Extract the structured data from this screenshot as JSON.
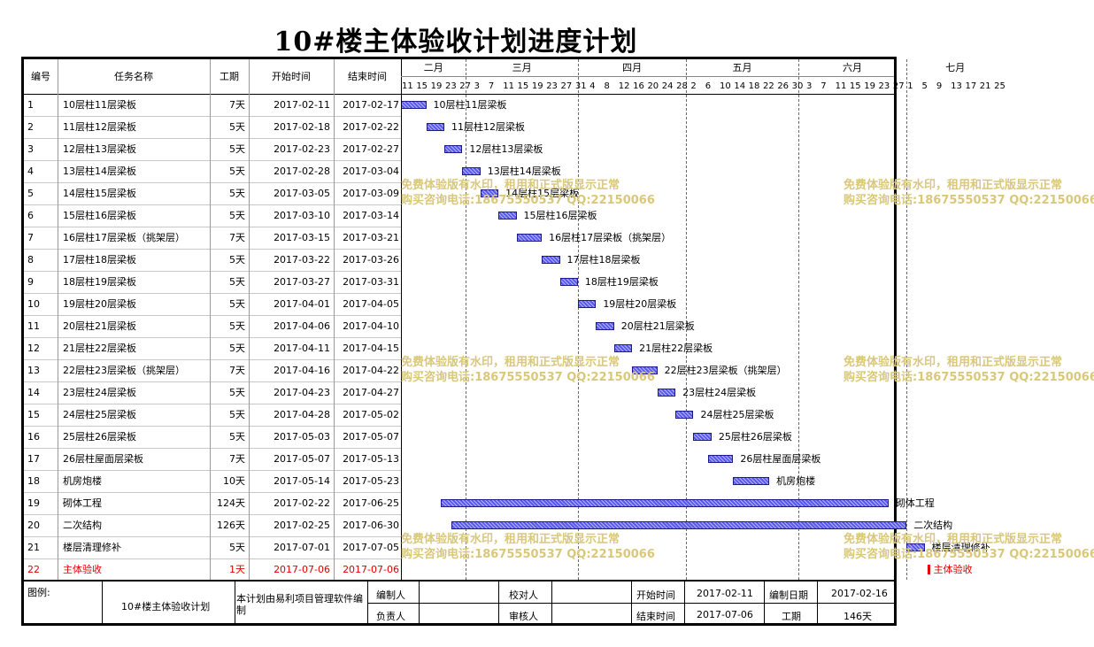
{
  "title": "10#楼主体验收计划进度计划",
  "columns": {
    "id": "编号",
    "name": "任务名称",
    "duration": "工期",
    "start": "开始时间",
    "end": "结束时间"
  },
  "months": [
    {
      "label": "二月"
    },
    {
      "label": "三月"
    },
    {
      "label": "四月"
    },
    {
      "label": "五月"
    },
    {
      "label": "六月"
    },
    {
      "label": "七月"
    }
  ],
  "days": [
    "11",
    "15",
    "19",
    "23",
    "27",
    "3",
    "7",
    "11",
    "15",
    "19",
    "23",
    "27",
    "31",
    "4",
    "8",
    "12",
    "16",
    "20",
    "24",
    "28",
    "2",
    "6",
    "10",
    "14",
    "18",
    "22",
    "26",
    "30",
    "3",
    "7",
    "11",
    "15",
    "19",
    "23",
    "27",
    "1",
    "5",
    "9",
    "13",
    "17",
    "21",
    "25"
  ],
  "tasks": [
    {
      "id": "1",
      "name": "10层柱11层梁板",
      "duration": "7天",
      "start": "2017-02-11",
      "end": "2017-02-17",
      "bar_label": "10层柱11层梁板"
    },
    {
      "id": "2",
      "name": "11层柱12层梁板",
      "duration": "5天",
      "start": "2017-02-18",
      "end": "2017-02-22",
      "bar_label": "11层柱12层梁板"
    },
    {
      "id": "3",
      "name": "12层柱13层梁板",
      "duration": "5天",
      "start": "2017-02-23",
      "end": "2017-02-27",
      "bar_label": "12层柱13层梁板"
    },
    {
      "id": "4",
      "name": "13层柱14层梁板",
      "duration": "5天",
      "start": "2017-02-28",
      "end": "2017-03-04",
      "bar_label": "13层柱14层梁板"
    },
    {
      "id": "5",
      "name": "14层柱15层梁板",
      "duration": "5天",
      "start": "2017-03-05",
      "end": "2017-03-09",
      "bar_label": "14层柱15层梁板"
    },
    {
      "id": "6",
      "name": "15层柱16层梁板",
      "duration": "5天",
      "start": "2017-03-10",
      "end": "2017-03-14",
      "bar_label": "15层柱16层梁板"
    },
    {
      "id": "7",
      "name": "16层柱17层梁板（挑架层）",
      "duration": "7天",
      "start": "2017-03-15",
      "end": "2017-03-21",
      "bar_label": "16层柱17层梁板（挑架层）"
    },
    {
      "id": "8",
      "name": "17层柱18层梁板",
      "duration": "5天",
      "start": "2017-03-22",
      "end": "2017-03-26",
      "bar_label": "17层柱18层梁板"
    },
    {
      "id": "9",
      "name": "18层柱19层梁板",
      "duration": "5天",
      "start": "2017-03-27",
      "end": "2017-03-31",
      "bar_label": "18层柱19层梁板"
    },
    {
      "id": "10",
      "name": "19层柱20层梁板",
      "duration": "5天",
      "start": "2017-04-01",
      "end": "2017-04-05",
      "bar_label": "19层柱20层梁板"
    },
    {
      "id": "11",
      "name": "20层柱21层梁板",
      "duration": "5天",
      "start": "2017-04-06",
      "end": "2017-04-10",
      "bar_label": "20层柱21层梁板"
    },
    {
      "id": "12",
      "name": "21层柱22层梁板",
      "duration": "5天",
      "start": "2017-04-11",
      "end": "2017-04-15",
      "bar_label": "21层柱22层梁板"
    },
    {
      "id": "13",
      "name": "22层柱23层梁板（挑架层）",
      "duration": "7天",
      "start": "2017-04-16",
      "end": "2017-04-22",
      "bar_label": "22层柱23层梁板（挑架层）"
    },
    {
      "id": "14",
      "name": "23层柱24层梁板",
      "duration": "5天",
      "start": "2017-04-23",
      "end": "2017-04-27",
      "bar_label": "23层柱24层梁板"
    },
    {
      "id": "15",
      "name": "24层柱25层梁板",
      "duration": "5天",
      "start": "2017-04-28",
      "end": "2017-05-02",
      "bar_label": "24层柱25层梁板"
    },
    {
      "id": "16",
      "name": "25层柱26层梁板",
      "duration": "5天",
      "start": "2017-05-03",
      "end": "2017-05-07",
      "bar_label": "25层柱26层梁板"
    },
    {
      "id": "17",
      "name": "26层柱屋面层梁板",
      "duration": "7天",
      "start": "2017-05-07",
      "end": "2017-05-13",
      "bar_label": "26层柱屋面层梁板"
    },
    {
      "id": "18",
      "name": "机房炮楼",
      "duration": "10天",
      "start": "2017-05-14",
      "end": "2017-05-23",
      "bar_label": "机房炮楼"
    },
    {
      "id": "19",
      "name": "砌体工程",
      "duration": "124天",
      "start": "2017-02-22",
      "end": "2017-06-25",
      "bar_label": "砌体工程"
    },
    {
      "id": "20",
      "name": "二次结构",
      "duration": "126天",
      "start": "2017-02-25",
      "end": "2017-06-30",
      "bar_label": "二次结构"
    },
    {
      "id": "21",
      "name": "楼层清理修补",
      "duration": "5天",
      "start": "2017-07-01",
      "end": "2017-07-05",
      "bar_label": "楼层清理修补"
    },
    {
      "id": "22",
      "name": "主体验收",
      "duration": "1天",
      "start": "2017-07-06",
      "end": "2017-07-06",
      "bar_label": "主体验收",
      "milestone": true,
      "color": "#e00000"
    }
  ],
  "footer": {
    "legend_label": "图例:",
    "plan_name": "10#楼主体验收计划",
    "software_note": "本计划由易利项目管理软件编制",
    "compiler_label": "编制人",
    "checker_label": "校对人",
    "responsible_label": "负责人",
    "reviewer_label": "审核人",
    "start_label": "开始时间",
    "start_value": "2017-02-11",
    "end_label": "结束时间",
    "end_value": "2017-07-06",
    "compile_date_label": "编制日期",
    "compile_date_value": "2017-02-16",
    "duration_label": "工期",
    "duration_value": "146天"
  },
  "watermark": {
    "line1": "免费体验版有水印，租用和正式版显示正常",
    "line2": "购买咨询电话:18675550537 QQ:22150066"
  },
  "colors": {
    "bar_fill": "#5858ee",
    "bar_border": "#1a1a8a",
    "milestone": "#e00000",
    "watermark": "#d9c87a"
  }
}
